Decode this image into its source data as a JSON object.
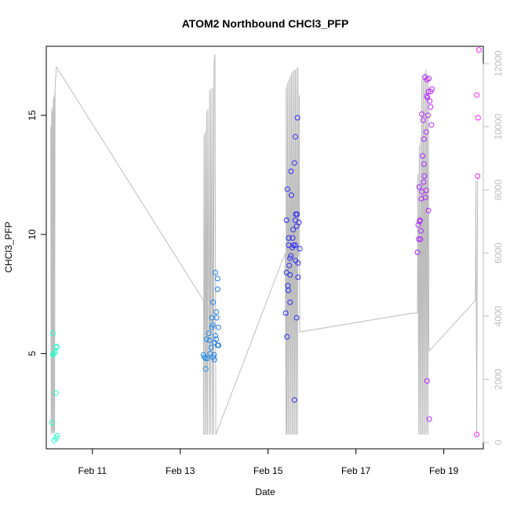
{
  "chart_data": {
    "type": "scatter",
    "title": "ATOM2 Northbound CHCl3_PFP",
    "xlabel": "Date",
    "ylabel": "CHCl3_PFP",
    "x_ticks": [
      "Feb 11",
      "Feb 13",
      "Feb 15",
      "Feb 17",
      "Feb 19"
    ],
    "x_tick_values": [
      11,
      13,
      15,
      17,
      19
    ],
    "y_ticks": [
      "5",
      "10",
      "15"
    ],
    "y_tick_values": [
      5,
      10,
      15
    ],
    "y2_ticks": [
      "0",
      "2000",
      "4000",
      "6000",
      "8000",
      "10000",
      "12000"
    ],
    "y2_tick_values": [
      0,
      2000,
      4000,
      6000,
      8000,
      10000,
      12000
    ],
    "xlim": [
      9.95,
      19.9
    ],
    "ylim": [
      1.0,
      17.9
    ],
    "y2lim": [
      -200,
      12550
    ],
    "colors": {
      "altitude_line": "#bdbdbd",
      "gradient": [
        "#1fffc7",
        "#20e0e0",
        "#1a2cf0",
        "#6a2fff",
        "#ff20ff"
      ]
    },
    "points": [
      [
        10.08,
        2.1
      ],
      [
        10.1,
        5.85
      ],
      [
        10.1,
        4.95
      ],
      [
        10.12,
        5.0
      ],
      [
        10.13,
        1.35
      ],
      [
        10.15,
        5.05
      ],
      [
        10.17,
        3.35
      ],
      [
        10.17,
        1.45
      ],
      [
        10.18,
        5.25
      ],
      [
        10.18,
        5.3
      ],
      [
        10.2,
        1.55
      ],
      [
        13.53,
        4.95
      ],
      [
        13.55,
        4.85
      ],
      [
        13.58,
        4.8
      ],
      [
        13.58,
        4.35
      ],
      [
        13.6,
        5.6
      ],
      [
        13.62,
        4.8
      ],
      [
        13.65,
        5.85
      ],
      [
        13.67,
        5.55
      ],
      [
        13.68,
        5.0
      ],
      [
        13.7,
        5.25
      ],
      [
        13.72,
        6.1
      ],
      [
        13.72,
        6.5
      ],
      [
        13.74,
        6.2
      ],
      [
        13.75,
        7.15
      ],
      [
        13.75,
        4.85
      ],
      [
        13.77,
        4.95
      ],
      [
        13.78,
        5.45
      ],
      [
        13.78,
        4.75
      ],
      [
        13.8,
        8.4
      ],
      [
        13.8,
        5.75
      ],
      [
        13.82,
        6.75
      ],
      [
        13.82,
        5.6
      ],
      [
        13.83,
        6.5
      ],
      [
        13.85,
        8.15
      ],
      [
        13.85,
        7.7
      ],
      [
        13.85,
        5.35
      ],
      [
        13.87,
        6.1
      ],
      [
        13.87,
        5.35
      ],
      [
        15.4,
        6.7
      ],
      [
        15.42,
        10.6
      ],
      [
        15.42,
        8.4
      ],
      [
        15.43,
        5.7
      ],
      [
        15.44,
        11.9
      ],
      [
        15.45,
        7.85
      ],
      [
        15.46,
        7.65
      ],
      [
        15.47,
        9.55
      ],
      [
        15.47,
        9.85
      ],
      [
        15.48,
        8.7
      ],
      [
        15.5,
        9.0
      ],
      [
        15.5,
        8.3
      ],
      [
        15.5,
        7.15
      ],
      [
        15.52,
        12.65
      ],
      [
        15.52,
        9.1
      ],
      [
        15.53,
        11.65
      ],
      [
        15.55,
        9.45
      ],
      [
        15.56,
        9.85
      ],
      [
        15.57,
        10.2
      ],
      [
        15.58,
        9.55
      ],
      [
        15.6,
        13.0
      ],
      [
        15.6,
        3.05
      ],
      [
        15.62,
        14.1
      ],
      [
        15.62,
        10.6
      ],
      [
        15.62,
        9.55
      ],
      [
        15.63,
        10.85
      ],
      [
        15.63,
        8.9
      ],
      [
        15.65,
        6.5
      ],
      [
        15.65,
        10.35
      ],
      [
        15.66,
        10.85
      ],
      [
        15.67,
        14.9
      ],
      [
        15.68,
        8.8
      ],
      [
        15.68,
        8.2
      ],
      [
        15.7,
        10.5
      ],
      [
        15.72,
        9.4
      ],
      [
        18.4,
        9.25
      ],
      [
        18.42,
        10.4
      ],
      [
        18.43,
        9.8
      ],
      [
        18.44,
        12.0
      ],
      [
        18.45,
        10.55
      ],
      [
        18.46,
        10.6
      ],
      [
        18.47,
        9.8
      ],
      [
        18.48,
        10.15
      ],
      [
        18.49,
        11.5
      ],
      [
        18.5,
        11.8
      ],
      [
        18.5,
        15.05
      ],
      [
        18.52,
        13.3
      ],
      [
        18.53,
        14.8
      ],
      [
        18.54,
        12.2
      ],
      [
        18.55,
        12.95
      ],
      [
        18.55,
        14.0
      ],
      [
        18.56,
        12.45
      ],
      [
        18.57,
        16.6
      ],
      [
        18.58,
        11.55
      ],
      [
        18.6,
        14.3
      ],
      [
        18.6,
        11.85
      ],
      [
        18.61,
        15.8
      ],
      [
        18.62,
        16.5
      ],
      [
        18.62,
        3.85
      ],
      [
        18.63,
        15.75
      ],
      [
        18.64,
        15.0
      ],
      [
        18.65,
        16.0
      ],
      [
        18.65,
        11.0
      ],
      [
        18.66,
        16.55
      ],
      [
        18.67,
        2.25
      ],
      [
        18.68,
        15.6
      ],
      [
        18.7,
        15.35
      ],
      [
        18.7,
        16.0
      ],
      [
        18.72,
        14.6
      ],
      [
        18.73,
        16.1
      ],
      [
        19.75,
        1.6
      ],
      [
        19.75,
        15.85
      ],
      [
        19.77,
        12.45
      ],
      [
        19.78,
        14.9
      ],
      [
        19.8,
        17.75
      ]
    ],
    "altitude_line": [
      [
        10.05,
        10000
      ],
      [
        10.06,
        250
      ],
      [
        10.07,
        10500
      ],
      [
        10.08,
        300
      ],
      [
        10.09,
        10600
      ],
      [
        10.1,
        350
      ],
      [
        10.11,
        10900
      ],
      [
        10.12,
        250
      ],
      [
        10.13,
        11000
      ],
      [
        10.14,
        300
      ],
      [
        10.15,
        11200
      ],
      [
        10.16,
        11500
      ],
      [
        10.18,
        11900
      ],
      [
        13.53,
        4500
      ],
      [
        13.53,
        250
      ],
      [
        13.54,
        9750
      ],
      [
        13.56,
        250
      ],
      [
        13.57,
        9850
      ],
      [
        13.59,
        250
      ],
      [
        13.6,
        10500
      ],
      [
        13.62,
        250
      ],
      [
        13.63,
        10550
      ],
      [
        13.66,
        250
      ],
      [
        13.67,
        11150
      ],
      [
        13.69,
        250
      ],
      [
        13.7,
        11200
      ],
      [
        13.73,
        250
      ],
      [
        13.74,
        11250
      ],
      [
        13.76,
        250
      ],
      [
        13.77,
        12000
      ],
      [
        13.79,
        12300
      ],
      [
        13.81,
        250
      ],
      [
        15.39,
        6000
      ],
      [
        15.41,
        250
      ],
      [
        15.41,
        11250
      ],
      [
        15.43,
        250
      ],
      [
        15.44,
        11400
      ],
      [
        15.46,
        250
      ],
      [
        15.47,
        11500
      ],
      [
        15.49,
        250
      ],
      [
        15.5,
        11600
      ],
      [
        15.52,
        250
      ],
      [
        15.53,
        11700
      ],
      [
        15.55,
        250
      ],
      [
        15.56,
        11750
      ],
      [
        15.58,
        250
      ],
      [
        15.59,
        11800
      ],
      [
        15.61,
        250
      ],
      [
        15.62,
        11800
      ],
      [
        15.64,
        250
      ],
      [
        15.65,
        11850
      ],
      [
        15.67,
        250
      ],
      [
        15.68,
        11900
      ],
      [
        15.69,
        5900
      ],
      [
        15.71,
        11000
      ],
      [
        15.72,
        3500
      ],
      [
        18.3,
        4100
      ],
      [
        18.4,
        4100
      ],
      [
        18.41,
        8500
      ],
      [
        18.43,
        250
      ],
      [
        18.44,
        9400
      ],
      [
        18.46,
        250
      ],
      [
        18.47,
        9700
      ],
      [
        18.49,
        250
      ],
      [
        18.5,
        11500
      ],
      [
        18.52,
        250
      ],
      [
        18.53,
        11600
      ],
      [
        18.55,
        250
      ],
      [
        18.56,
        11700
      ],
      [
        18.58,
        250
      ],
      [
        18.59,
        11800
      ],
      [
        18.61,
        250
      ],
      [
        18.62,
        11700
      ],
      [
        18.64,
        250
      ],
      [
        18.65,
        11500
      ],
      [
        18.66,
        3200
      ],
      [
        18.67,
        2900
      ],
      [
        19.72,
        4500
      ],
      [
        19.73,
        8300
      ],
      [
        19.75,
        200
      ],
      [
        19.77,
        8400
      ]
    ]
  }
}
